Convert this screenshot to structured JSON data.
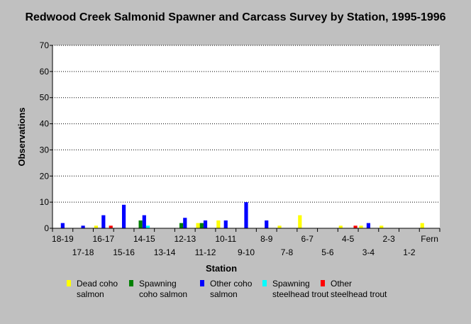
{
  "chart_data": {
    "type": "bar",
    "title": "Redwood Creek Salmonid Spawner and Carcass Survey by Station, 1995-1996",
    "xlabel": "Station",
    "ylabel": "Observations",
    "ylim": [
      0,
      70
    ],
    "yticks": [
      0,
      10,
      20,
      30,
      40,
      50,
      60,
      70
    ],
    "grid": true,
    "legend_position": "bottom",
    "categories": [
      "18-19",
      "17-18",
      "16-17",
      "15-16",
      "14-15",
      "13-14",
      "12-13",
      "11-12",
      "10-11",
      "9-10",
      "8-9",
      "7-8",
      "6-7",
      "5-6",
      "4-5",
      "3-4",
      "2-3",
      "1-2",
      "Fern"
    ],
    "series": [
      {
        "name": "Dead coho salmon",
        "color": "#ffff00",
        "values": [
          0,
          0,
          1,
          0,
          0,
          0,
          0,
          2,
          3,
          0,
          0,
          1,
          5,
          0,
          1,
          1,
          1,
          0,
          2
        ]
      },
      {
        "name": "Spawning coho salmon",
        "color": "#008000",
        "values": [
          0,
          0,
          0,
          0,
          3,
          0,
          2,
          2,
          0,
          0,
          0,
          0,
          0,
          0,
          0,
          0,
          0,
          0,
          0
        ]
      },
      {
        "name": "Other coho salmon",
        "color": "#0000ff",
        "values": [
          2,
          1,
          5,
          9,
          5,
          0,
          4,
          3,
          3,
          10,
          3,
          0,
          0,
          0,
          0,
          2,
          0,
          0,
          0
        ]
      },
      {
        "name": "Spawning steelhead trout",
        "color": "#00ffff",
        "values": [
          0,
          0,
          0,
          0,
          1,
          0,
          0,
          0,
          0,
          0,
          0,
          0,
          0,
          0,
          0,
          0,
          0,
          0,
          0
        ]
      },
      {
        "name": "Other steelhead trout",
        "color": "#ff0000",
        "values": [
          0,
          0,
          1,
          0,
          0,
          0,
          0,
          0,
          0,
          0,
          0,
          0,
          0,
          0,
          1,
          0,
          0,
          0,
          0
        ]
      }
    ]
  }
}
